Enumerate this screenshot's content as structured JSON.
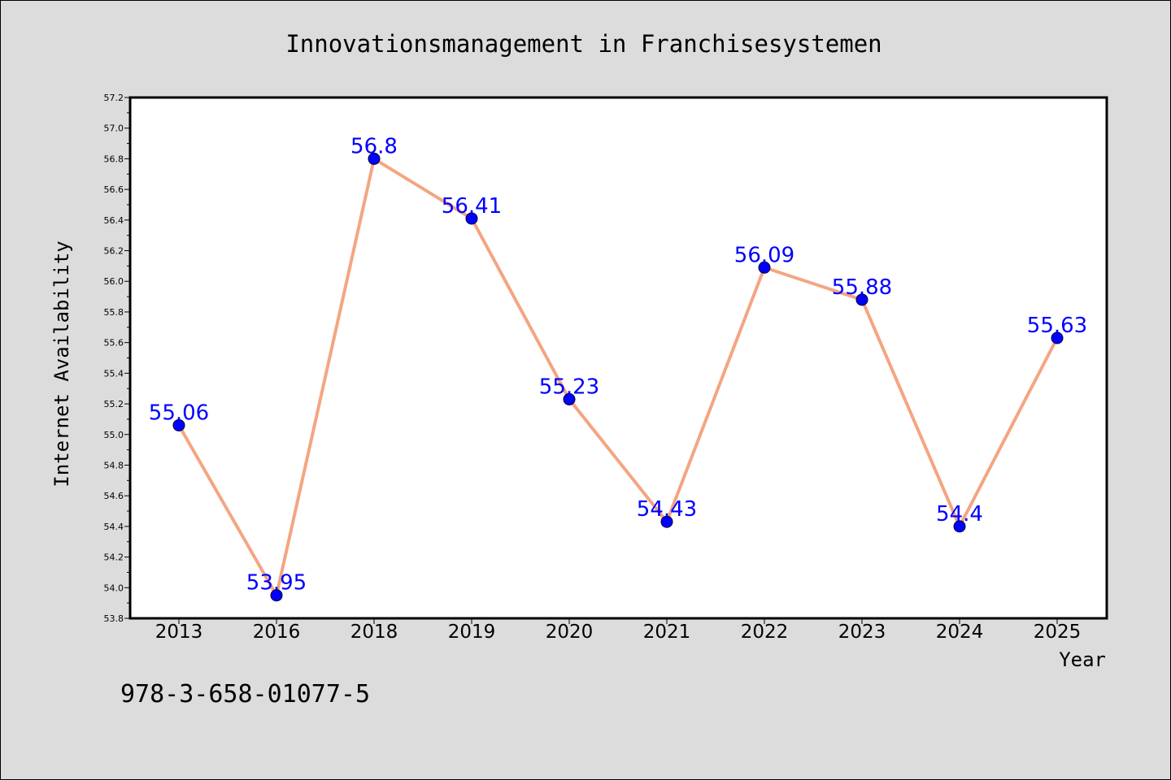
{
  "chart_data": {
    "type": "line",
    "title": "Innovationsmanagement in Franchisesystemen",
    "xlabel": "Year",
    "ylabel": "Internet Availability",
    "categories": [
      "2013",
      "2016",
      "2018",
      "2019",
      "2020",
      "2021",
      "2022",
      "2023",
      "2024",
      "2025"
    ],
    "series": [
      {
        "values": [
          55.06,
          53.95,
          56.8,
          56.41,
          55.23,
          54.43,
          56.09,
          55.88,
          54.4,
          55.63
        ],
        "data_labels": [
          "55.06",
          "53.95",
          "56.8",
          "56.41",
          "55.23",
          "54.43",
          "56.09",
          "55.88",
          "54.4",
          "55.63"
        ]
      }
    ],
    "ylim": [
      53.8,
      57.2
    ],
    "yticks": [
      "53.8",
      "54.0",
      "54.2",
      "54.4",
      "54.6",
      "54.8",
      "55.0",
      "55.2",
      "55.4",
      "55.6",
      "55.8",
      "56.0",
      "56.2",
      "56.4",
      "56.6",
      "56.8",
      "57.0",
      "57.2"
    ],
    "grid": false,
    "legend": "none",
    "colors": {
      "line": "#f4a582",
      "marker": "#0000ff",
      "data_label": "#0000ff",
      "plot_background": "#ffffff",
      "figure_background": "#dcdcdc"
    }
  },
  "footer": {
    "isbn": "978-3-658-01077-5"
  }
}
